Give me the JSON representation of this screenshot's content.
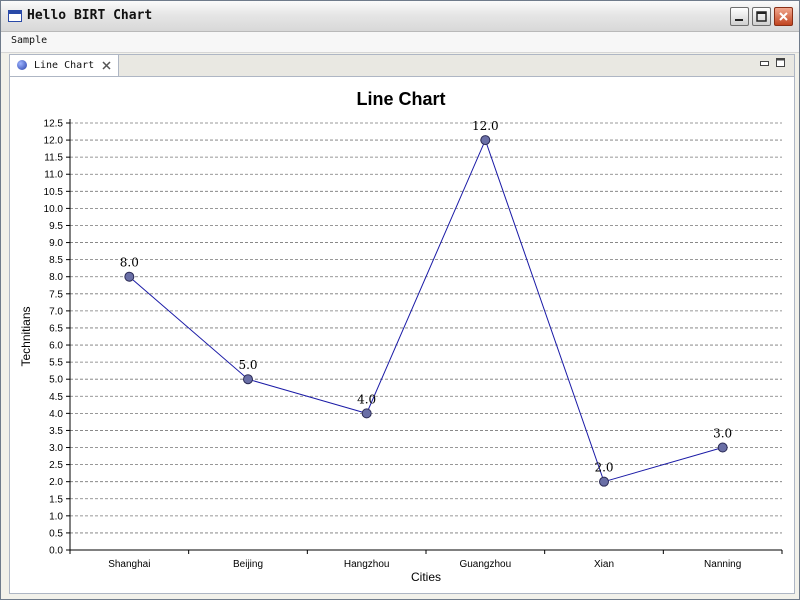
{
  "window": {
    "title": "Hello BIRT Chart",
    "icon": "window-icon"
  },
  "menubar": {
    "items": [
      {
        "label": "Sample"
      }
    ]
  },
  "tabs": [
    {
      "label": "Line Chart",
      "icon": "chart-icon",
      "active": true
    }
  ],
  "colors": {
    "series": "#1a1aa6",
    "marker_fill": "#6a6fa6",
    "grid": "#777777"
  },
  "chart_data": {
    "type": "line",
    "title": "Line Chart",
    "xlabel": "Cities",
    "ylabel": "Technitians",
    "categories": [
      "Shanghai",
      "Beijing",
      "Hangzhou",
      "Guangzhou",
      "Xian",
      "Nanning"
    ],
    "series": [
      {
        "values": [
          8,
          5,
          4,
          12,
          2,
          3
        ]
      }
    ],
    "data_labels": [
      "8.0",
      "5.0",
      "4.0",
      "12.0",
      "2.0",
      "3.0"
    ],
    "ylim": [
      0,
      12.5
    ],
    "ytick_labels": [
      "0.0",
      "0.5",
      "1.0",
      "1.5",
      "2.0",
      "2.5",
      "3.0",
      "3.5",
      "4.0",
      "4.5",
      "5.0",
      "5.5",
      "6.0",
      "6.5",
      "7.0",
      "7.5",
      "8.0",
      "8.5",
      "9.0",
      "9.5",
      "10.0",
      "10.5",
      "11.0",
      "11.5",
      "12.0",
      "12.5"
    ],
    "grid": true,
    "legend": "none"
  }
}
